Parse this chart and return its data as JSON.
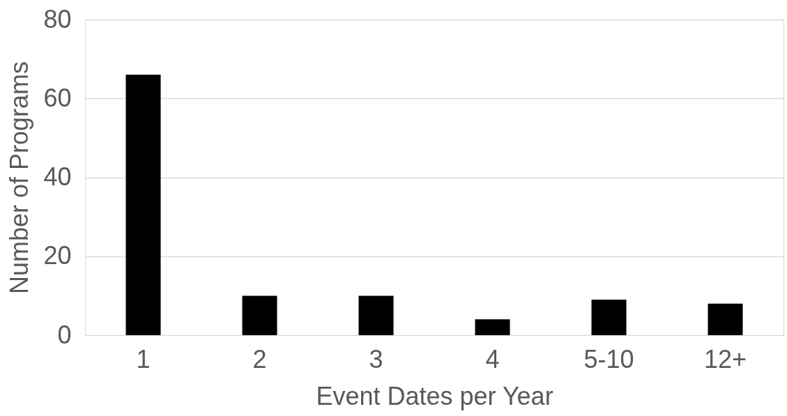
{
  "chart_data": {
    "type": "bar",
    "xlabel": "Event Dates per Year",
    "ylabel": "Number of Programs",
    "categories": [
      "1",
      "2",
      "3",
      "4",
      "5-10",
      "12+"
    ],
    "values": [
      66,
      10,
      10,
      4,
      9,
      8
    ],
    "color": "#000000",
    "ylim": [
      0,
      80
    ],
    "yticks": [
      0,
      20,
      40,
      60,
      80
    ],
    "grid": "y"
  }
}
